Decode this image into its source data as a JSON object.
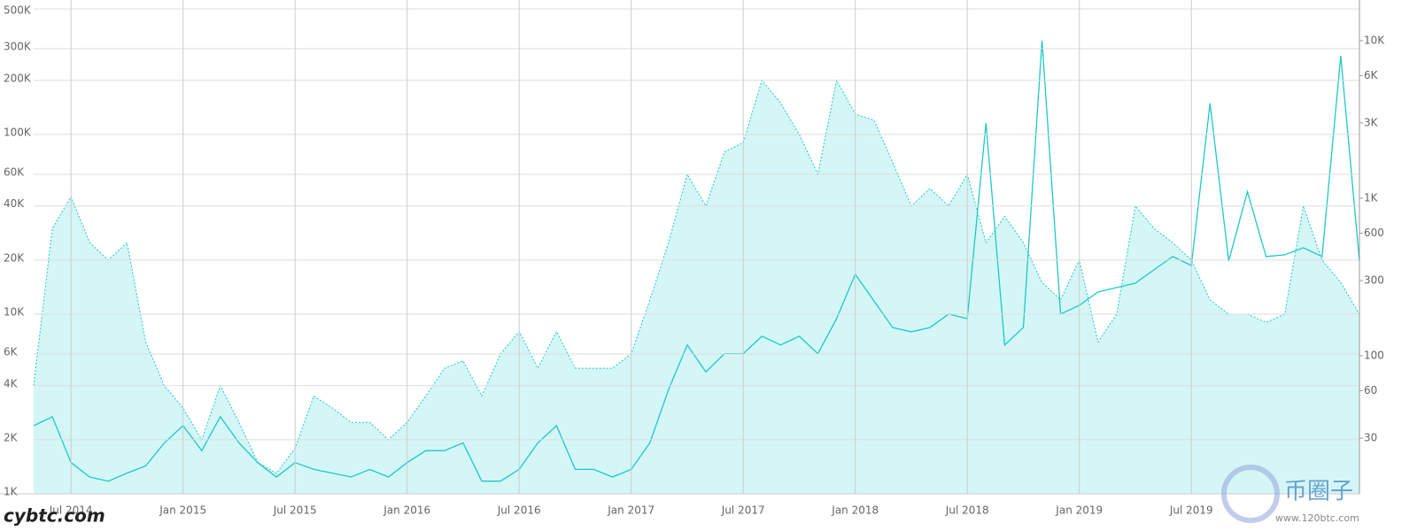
{
  "chart_data": {
    "type": "line",
    "x": [
      "2014-05",
      "2014-06",
      "2014-07",
      "2014-08",
      "2014-09",
      "2014-10",
      "2014-11",
      "2014-12",
      "2015-01",
      "2015-02",
      "2015-03",
      "2015-04",
      "2015-05",
      "2015-06",
      "2015-07",
      "2015-08",
      "2015-09",
      "2015-10",
      "2015-11",
      "2015-12",
      "2016-01",
      "2016-02",
      "2016-03",
      "2016-04",
      "2016-05",
      "2016-06",
      "2016-07",
      "2016-08",
      "2016-09",
      "2016-10",
      "2016-11",
      "2016-12",
      "2017-01",
      "2017-02",
      "2017-03",
      "2017-04",
      "2017-05",
      "2017-06",
      "2017-07",
      "2017-08",
      "2017-09",
      "2017-10",
      "2017-11",
      "2017-12",
      "2018-01",
      "2018-02",
      "2018-03",
      "2018-04",
      "2018-05",
      "2018-06",
      "2018-07",
      "2018-08",
      "2018-09",
      "2018-10",
      "2018-11",
      "2018-12",
      "2019-01",
      "2019-02",
      "2019-03",
      "2019-04",
      "2019-05",
      "2019-06",
      "2019-07",
      "2019-08",
      "2019-09",
      "2019-10",
      "2019-11",
      "2019-12",
      "2020-01",
      "2020-02",
      "2020-03",
      "2020-04"
    ],
    "series": [
      {
        "color": "#1ec8c8",
        "fill": "#d4f6f6",
        "dashed": true,
        "axis": "y",
        "values": [
          4000,
          30000,
          45000,
          25000,
          20000,
          25000,
          7000,
          4000,
          3000,
          2000,
          4000,
          2500,
          1500,
          1300,
          1800,
          3500,
          3000,
          2500,
          2500,
          2000,
          2500,
          3500,
          5000,
          5500,
          3500,
          6000,
          8000,
          5000,
          8000,
          5000,
          5000,
          5000,
          6000,
          12000,
          25000,
          60000,
          40000,
          80000,
          90000,
          200000,
          150000,
          100000,
          60000,
          200000,
          130000,
          120000,
          70000,
          40000,
          50000,
          40000,
          60000,
          25000,
          35000,
          25000,
          15000,
          12000,
          20000,
          7000,
          10000,
          40000,
          30000,
          25000,
          20000,
          12000,
          10000,
          10000,
          9000,
          10000,
          40000,
          20000,
          15000,
          10000
        ]
      },
      {
        "color": "#1ec8c8",
        "dashed": false,
        "axis": "y2",
        "values": [
          36,
          41,
          21,
          17,
          16,
          18,
          20,
          28,
          36,
          25,
          41,
          28,
          21,
          17,
          21,
          19,
          18,
          17,
          19,
          17,
          21,
          25,
          25,
          28,
          16,
          16,
          19,
          28,
          36,
          19,
          19,
          17,
          19,
          28,
          61,
          117,
          79,
          103,
          103,
          133,
          117,
          133,
          103,
          172,
          329,
          223,
          151,
          142,
          151,
          184,
          172,
          3000,
          117,
          151,
          10000,
          184,
          209,
          254,
          271,
          289,
          351,
          426,
          374,
          4000,
          399,
          1100,
          426,
          437,
          485,
          426,
          8000,
          399
        ]
      }
    ],
    "xlim": [
      "2014-05",
      "2020-04"
    ],
    "xticks": [
      {
        "value": "2014-07",
        "label": "Jul 2014"
      },
      {
        "value": "2015-01",
        "label": "Jan 2015"
      },
      {
        "value": "2015-07",
        "label": "Jul 2015"
      },
      {
        "value": "2016-01",
        "label": "Jan 2016"
      },
      {
        "value": "2016-07",
        "label": "Jul 2016"
      },
      {
        "value": "2017-01",
        "label": "Jan 2017"
      },
      {
        "value": "2017-07",
        "label": "Jul 2017"
      },
      {
        "value": "2018-01",
        "label": "Jan 2018"
      },
      {
        "value": "2018-07",
        "label": "Jul 2018"
      },
      {
        "value": "2019-01",
        "label": "Jan 2019"
      },
      {
        "value": "2019-07",
        "label": "Jul 2019"
      }
    ],
    "ylim": [
      1000,
      500000
    ],
    "log": true,
    "yticks": [
      {
        "value": 1000,
        "label": "1K"
      },
      {
        "value": 2000,
        "label": "2K"
      },
      {
        "value": 4000,
        "label": "4K"
      },
      {
        "value": 6000,
        "label": "6K"
      },
      {
        "value": 10000,
        "label": "10K"
      },
      {
        "value": 20000,
        "label": "20K"
      },
      {
        "value": 40000,
        "label": "40K"
      },
      {
        "value": 60000,
        "label": "60K"
      },
      {
        "value": 100000,
        "label": "100K"
      },
      {
        "value": 200000,
        "label": "200K"
      },
      {
        "value": 300000,
        "label": "300K"
      },
      {
        "value": 500000,
        "label": "500K"
      }
    ],
    "y2lim": [
      13.3,
      15900
    ],
    "y2ticks": [
      30,
      60,
      100,
      300,
      600,
      {
        "value": 1000,
        "label": "1K"
      },
      {
        "value": 3000,
        "label": "3K"
      },
      {
        "value": 6000,
        "label": "6K"
      },
      {
        "value": 10000,
        "label": "10K"
      }
    ],
    "grid": true,
    "annotations": [
      "cybtc.com",
      "币圈子",
      "www.120btc.com"
    ]
  }
}
